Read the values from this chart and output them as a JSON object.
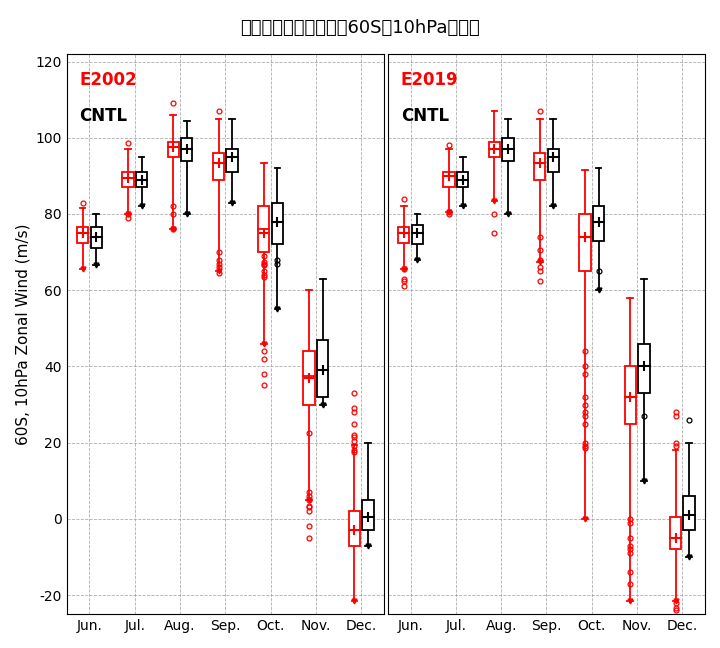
{
  "title": "極渦強度の指標となる60S、10hPa東西風",
  "ylabel": "60S, 10hPa Zonal Wind (m/s)",
  "months": [
    "Jun.",
    "Jul.",
    "Aug.",
    "Sep.",
    "Oct.",
    "Nov.",
    "Dec."
  ],
  "ylim": [
    -25,
    122
  ],
  "yticks": [
    -20,
    0,
    20,
    40,
    60,
    80,
    100,
    120
  ],
  "panels": [
    {
      "label": "E2002",
      "exp": {
        "whislo": [
          65.5,
          80.0,
          76.0,
          65.0,
          46.0,
          5.0,
          -21.5
        ],
        "q1": [
          72.5,
          87.0,
          95.0,
          89.0,
          70.0,
          30.0,
          -7.0
        ],
        "med": [
          75.0,
          89.5,
          97.5,
          93.5,
          76.0,
          37.5,
          -3.0
        ],
        "q3": [
          76.5,
          91.0,
          99.0,
          96.0,
          82.0,
          44.0,
          2.0
        ],
        "whishi": [
          81.5,
          97.0,
          106.0,
          105.0,
          93.5,
          60.0,
          19.5
        ],
        "mean": [
          75.0,
          89.5,
          97.5,
          93.5,
          75.0,
          37.0,
          -3.0
        ],
        "fliers_y": [
          [
            83.0
          ],
          [
            80.0,
            79.0,
            98.5
          ],
          [
            80.0,
            76.0,
            82.0,
            109.0
          ],
          [
            67.0,
            70.0,
            68.0,
            107.0,
            64.5,
            66.0
          ],
          [
            35.0,
            38.0,
            42.0,
            63.5,
            67.0,
            67.5,
            69.0,
            66.5,
            65.0,
            64.0,
            44.0
          ],
          [
            -5.0,
            -2.0,
            3.0,
            5.0,
            6.0,
            7.0,
            22.5,
            2.0,
            3.5
          ],
          [
            20.5,
            19.0,
            18.0,
            17.5,
            28.0,
            29.0,
            33.0,
            25.0,
            22.0,
            21.5
          ]
        ]
      },
      "cntl": {
        "whislo": [
          66.5,
          82.0,
          80.0,
          83.0,
          55.0,
          30.0,
          -7.0
        ],
        "q1": [
          71.0,
          87.0,
          94.0,
          91.0,
          72.0,
          32.0,
          -3.0
        ],
        "med": [
          74.0,
          89.0,
          97.0,
          95.0,
          78.0,
          39.0,
          0.5
        ],
        "q3": [
          76.5,
          91.0,
          100.0,
          97.0,
          83.0,
          47.0,
          5.0
        ],
        "whishi": [
          80.0,
          95.0,
          104.5,
          105.0,
          92.0,
          63.0,
          20.0
        ],
        "mean": [
          74.0,
          89.0,
          97.0,
          95.0,
          78.0,
          39.0,
          0.5
        ],
        "fliers_y": [
          [],
          [],
          [],
          [],
          [
            68.0,
            67.0
          ],
          [],
          []
        ]
      }
    },
    {
      "label": "E2019",
      "exp": {
        "whislo": [
          65.5,
          80.5,
          83.5,
          67.5,
          0.0,
          -21.5,
          -21.5
        ],
        "q1": [
          72.5,
          87.0,
          95.0,
          89.0,
          65.0,
          25.0,
          -8.0
        ],
        "med": [
          75.0,
          90.0,
          97.0,
          93.5,
          74.0,
          32.0,
          -5.0
        ],
        "q3": [
          76.5,
          91.0,
          99.0,
          96.0,
          80.0,
          40.0,
          0.5
        ],
        "whishi": [
          82.0,
          97.0,
          107.0,
          105.0,
          91.5,
          58.0,
          18.0
        ],
        "mean": [
          75.0,
          90.0,
          97.0,
          93.5,
          74.0,
          32.0,
          -5.0
        ],
        "fliers_y": [
          [
            84.0,
            65.5,
            63.0,
            62.5,
            61.0
          ],
          [
            80.0,
            80.5,
            98.0
          ],
          [
            80.0,
            75.0
          ],
          [
            68.0,
            65.0,
            66.0,
            62.5,
            70.5,
            74.0,
            107.0
          ],
          [
            40.0,
            38.0,
            32.0,
            30.0,
            28.0,
            27.0,
            25.0,
            44.0,
            20.0,
            19.0,
            18.5
          ],
          [
            -5.0,
            -7.0,
            -8.0,
            -9.0,
            -14.0,
            -17.0,
            0.0,
            -1.0
          ],
          [
            20.0,
            19.0,
            28.0,
            27.0,
            -22.0,
            -23.5,
            -24.0
          ]
        ]
      },
      "cntl": {
        "whislo": [
          68.0,
          82.0,
          80.0,
          82.0,
          60.0,
          10.0,
          -10.0
        ],
        "q1": [
          72.0,
          87.0,
          94.0,
          91.0,
          73.0,
          33.0,
          -3.0
        ],
        "med": [
          75.0,
          89.0,
          97.0,
          95.0,
          78.0,
          40.0,
          1.0
        ],
        "q3": [
          77.0,
          91.0,
          100.0,
          97.0,
          82.0,
          46.0,
          6.0
        ],
        "whishi": [
          80.0,
          95.0,
          105.0,
          105.0,
          92.0,
          63.0,
          20.0
        ],
        "mean": [
          75.0,
          89.0,
          97.0,
          95.0,
          78.0,
          40.0,
          1.0
        ],
        "fliers_y": [
          [],
          [],
          [],
          [],
          [
            65.0
          ],
          [
            27.0
          ],
          [
            26.0
          ]
        ]
      }
    }
  ]
}
